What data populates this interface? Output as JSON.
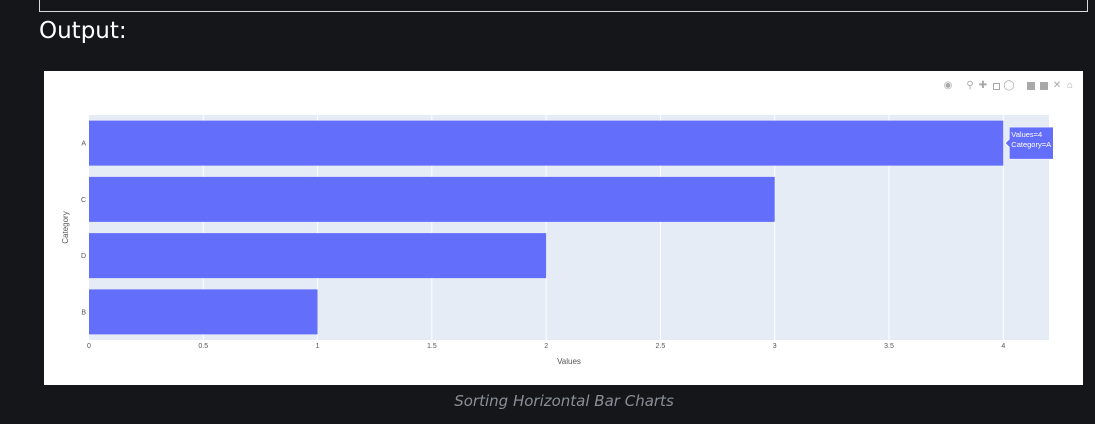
{
  "heading": "Output:",
  "caption": "Sorting Horizontal Bar Charts",
  "modebar": [
    "camera-icon",
    "zoom-icon",
    "pan-icon",
    "box-select-icon",
    "lasso-icon",
    "zoom-in-icon",
    "zoom-out-icon",
    "autoscale-icon",
    "home-icon"
  ],
  "colors": {
    "bar": "#636efa",
    "plot_bg": "#e5ecf6",
    "page_bg": "#141619"
  },
  "tooltip": {
    "line1": "Values=4",
    "line2": "Category=A"
  },
  "chart_data": {
    "type": "bar",
    "orientation": "horizontal",
    "categories": [
      "A",
      "C",
      "D",
      "B"
    ],
    "values": [
      4,
      3,
      2,
      1
    ],
    "xlabel": "Values",
    "ylabel": "Category",
    "xlim": [
      0,
      4.2
    ],
    "xticks": [
      "0",
      "0.5",
      "1",
      "1.5",
      "2",
      "2.5",
      "3",
      "3.5",
      "4"
    ],
    "grid": true
  }
}
